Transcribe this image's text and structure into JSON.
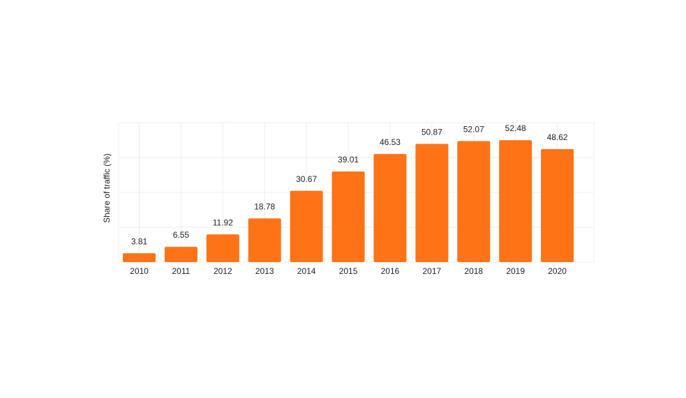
{
  "chart_data": {
    "type": "bar",
    "title": "",
    "xlabel": "",
    "ylabel": "Share of traffic (%)",
    "categories": [
      "2010",
      "2011",
      "2012",
      "2013",
      "2014",
      "2015",
      "2016",
      "2017",
      "2018",
      "2019",
      "2020"
    ],
    "values": [
      3.81,
      6.55,
      11.92,
      18.78,
      30.67,
      39.01,
      46.53,
      50.87,
      52.07,
      52.48,
      48.62
    ],
    "data_labels": [
      "3.81",
      "6.55",
      "11.92",
      "18.78",
      "30.67",
      "39.01",
      "46.53",
      "50.87",
      "52.07",
      "52.48",
      "48.62"
    ],
    "ylim": [
      0,
      60
    ],
    "grid": true,
    "y_tick_labels_visible": false,
    "legend": "none",
    "bar_color": "#ff7317"
  }
}
